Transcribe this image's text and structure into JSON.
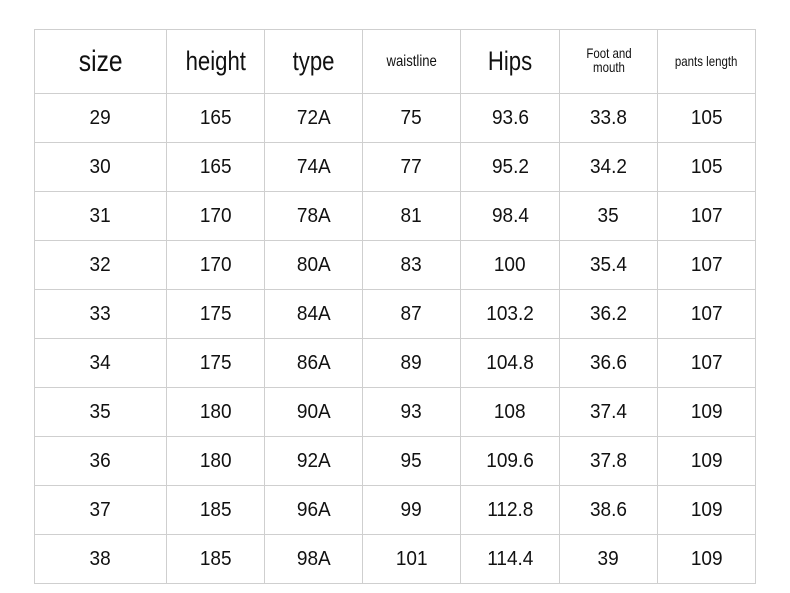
{
  "headers": [
    "size",
    "height",
    "type",
    "waistline",
    "Hips",
    "Foot and mouth",
    "pants length"
  ],
  "rows": [
    [
      "29",
      "165",
      "72A",
      "75",
      "93.6",
      "33.8",
      "105"
    ],
    [
      "30",
      "165",
      "74A",
      "77",
      "95.2",
      "34.2",
      "105"
    ],
    [
      "31",
      "170",
      "78A",
      "81",
      "98.4",
      "35",
      "107"
    ],
    [
      "32",
      "170",
      "80A",
      "83",
      "100",
      "35.4",
      "107"
    ],
    [
      "33",
      "175",
      "84A",
      "87",
      "103.2",
      "36.2",
      "107"
    ],
    [
      "34",
      "175",
      "86A",
      "89",
      "104.8",
      "36.6",
      "107"
    ],
    [
      "35",
      "180",
      "90A",
      "93",
      "108",
      "37.4",
      "109"
    ],
    [
      "36",
      "180",
      "92A",
      "95",
      "109.6",
      "37.8",
      "109"
    ],
    [
      "37",
      "185",
      "96A",
      "99",
      "112.8",
      "38.6",
      "109"
    ],
    [
      "38",
      "185",
      "98A",
      "101",
      "114.4",
      "39",
      "109"
    ]
  ]
}
